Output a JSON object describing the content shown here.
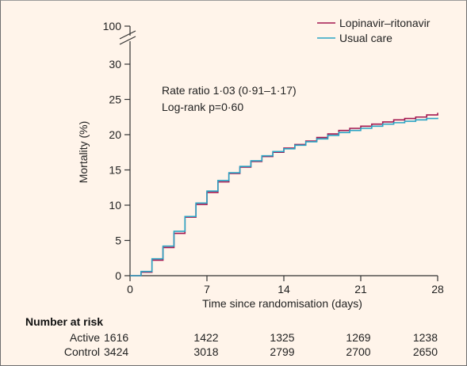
{
  "chart_data": {
    "type": "line",
    "title": "",
    "xlabel": "Time since randomisation (days)",
    "ylabel": "Mortality (%)",
    "xlim": [
      0,
      28
    ],
    "ylim": [
      0,
      30
    ],
    "y_break_tick": 100,
    "x_ticks": [
      0,
      7,
      14,
      21,
      28
    ],
    "y_ticks": [
      0,
      5,
      10,
      15,
      20,
      25,
      30
    ],
    "legend_position": "top-right",
    "grid": false,
    "annotations": [
      "Rate ratio 1·03 (0·91–1·17)",
      "Log-rank p=0·60"
    ],
    "series": [
      {
        "name": "Lopinavir–ritonavir",
        "color": "#a3174f",
        "x": [
          0,
          1,
          2,
          3,
          4,
          5,
          6,
          7,
          8,
          9,
          10,
          11,
          12,
          13,
          14,
          15,
          16,
          17,
          18,
          19,
          20,
          21,
          22,
          23,
          24,
          25,
          26,
          27,
          28
        ],
        "values": [
          0,
          0.5,
          2.2,
          4.0,
          6.0,
          8.3,
          10.1,
          11.8,
          13.3,
          14.5,
          15.4,
          16.2,
          16.9,
          17.5,
          18.1,
          18.6,
          19.1,
          19.6,
          20.1,
          20.6,
          20.9,
          21.2,
          21.5,
          21.8,
          22.1,
          22.3,
          22.5,
          22.8,
          23.1
        ]
      },
      {
        "name": "Usual care",
        "color": "#2aa3c4",
        "x": [
          0,
          1,
          2,
          3,
          4,
          5,
          6,
          7,
          8,
          9,
          10,
          11,
          12,
          13,
          14,
          15,
          16,
          17,
          18,
          19,
          20,
          21,
          22,
          23,
          24,
          25,
          26,
          27,
          28
        ],
        "values": [
          0,
          0.6,
          2.4,
          4.2,
          6.3,
          8.4,
          10.3,
          12.0,
          13.5,
          14.6,
          15.5,
          16.3,
          17.0,
          17.6,
          18.0,
          18.5,
          19.0,
          19.4,
          19.9,
          20.3,
          20.6,
          20.9,
          21.2,
          21.5,
          21.7,
          21.9,
          22.1,
          22.3,
          22.4
        ]
      }
    ]
  },
  "risk_table": {
    "title": "Number at risk",
    "rows": [
      {
        "label": "Active",
        "values": [
          "1616",
          "1422",
          "1325",
          "1269",
          "1238"
        ]
      },
      {
        "label": "Control",
        "values": [
          "3424",
          "3018",
          "2799",
          "2700",
          "2650"
        ]
      }
    ]
  }
}
